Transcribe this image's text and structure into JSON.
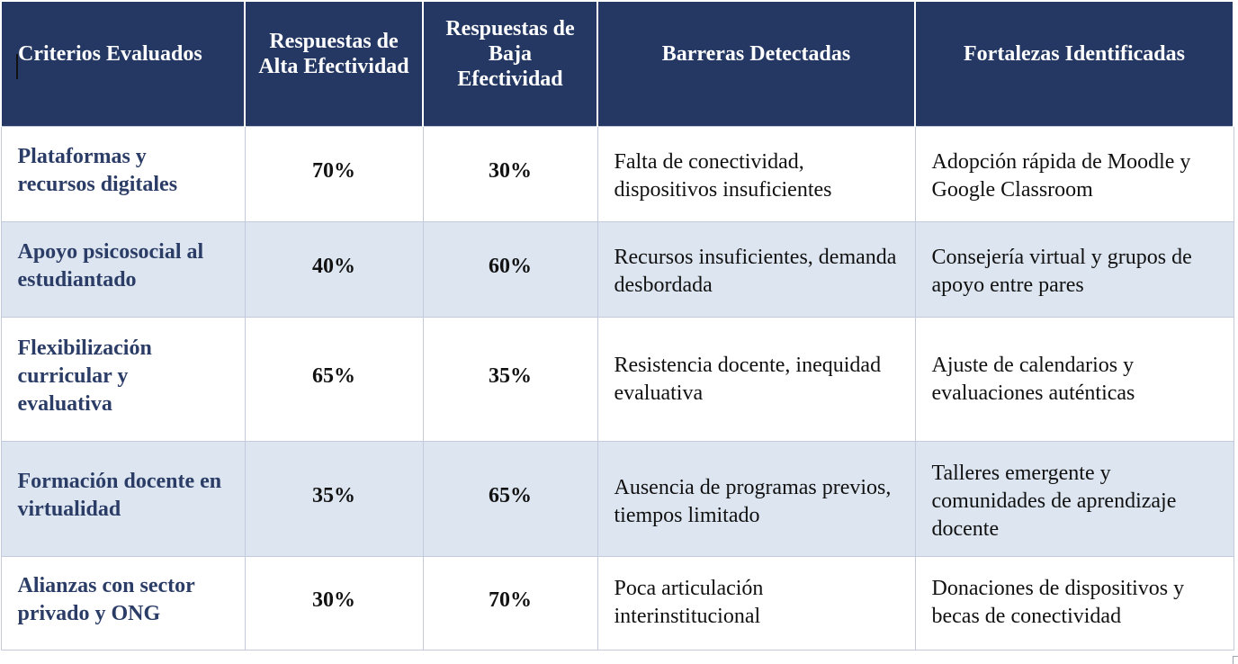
{
  "table": {
    "headers": [
      "Criterios Evaluados",
      "Respuestas de Alta Efectividad",
      "Respuestas de Baja Efectividad",
      "Barreras Detectadas",
      "Fortalezas Identificadas"
    ],
    "rows": [
      {
        "criterio": "Plataformas y recursos digitales",
        "alta": "70%",
        "baja": "30%",
        "barreras": "Falta de conectividad, dispositivos insuficientes",
        "fortalezas": "Adopción rápida de Moodle y Google Classroom"
      },
      {
        "criterio": "Apoyo psicosocial al estudiantado",
        "alta": "40%",
        "baja": "60%",
        "barreras": "Recursos insuficientes, demanda desbordada",
        "fortalezas": "Consejería virtual y grupos de apoyo entre pares"
      },
      {
        "criterio": "Flexibilización curricular y evaluativa",
        "alta": "65%",
        "baja": "35%",
        "barreras": "Resistencia docente, inequidad evaluativa",
        "fortalezas": "Ajuste de calendarios y evaluaciones auténticas"
      },
      {
        "criterio": "Formación docente en virtualidad",
        "alta": "35%",
        "baja": "65%",
        "barreras": "Ausencia de programas previos, tiempos limitado",
        "fortalezas": "Talleres emergente y comunidades de aprendizaje docente"
      },
      {
        "criterio": "Alianzas con sector privado y ONG",
        "alta": "30%",
        "baja": "70%",
        "barreras": "Poca articulación interinstitucional",
        "fortalezas": "Donaciones de dispositivos y becas de conectividad"
      }
    ]
  },
  "colors": {
    "header_bg": "#253863",
    "header_text": "#ffffff",
    "criterio_text": "#2b3d66",
    "shaded_row_bg": "#dce5f0",
    "grid_line": "#c3cadb"
  }
}
